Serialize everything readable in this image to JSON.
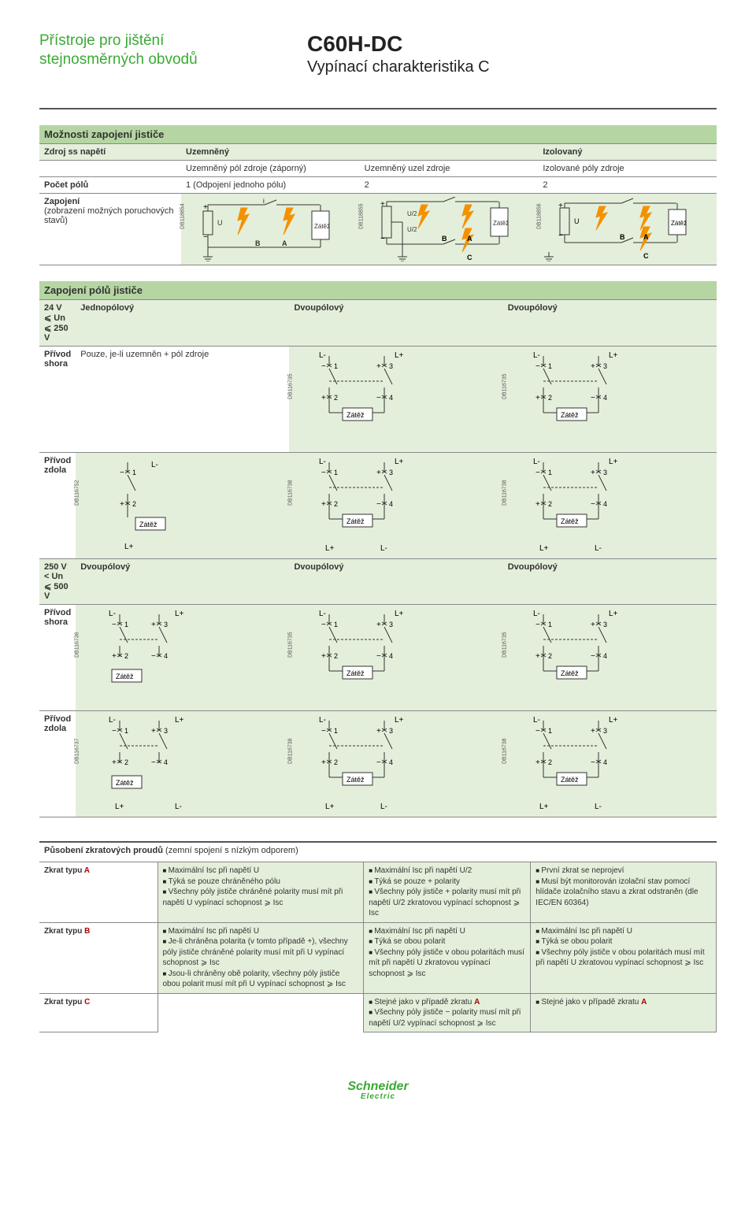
{
  "header": {
    "left_line1": "Přístroje pro jištění",
    "left_line2": "stejnosměrných obvodů",
    "model": "C60H-DC",
    "subtitle": "Vypínací charakteristika C"
  },
  "colors": {
    "accent_green": "#3aaa35",
    "band_green": "#b5d6a3",
    "pale_green": "#e4efdb",
    "bolt_orange": "#f39200",
    "line": "#333333"
  },
  "table1": {
    "title": "Možnosti zapojení jističe",
    "rows": {
      "source": {
        "label": "Zdroj ss napětí",
        "c1": "Uzemně­ný",
        "c2": "",
        "c3": "Izolovaný"
      },
      "source_sub": {
        "c1": "Uzemně­ný pól zdroje (záporný)",
        "c2": "Uzemně­ný uzel zdroje",
        "c3": "Izolované póly zdroje"
      },
      "poles": {
        "label": "Počet pólů",
        "c1": "1 (Odpojení jednoho pólu)",
        "c2": "2",
        "c3": "2"
      },
      "wiring": {
        "label_l1": "Zapojení",
        "label_l2": "(zobrazení možných poruchových stavů)"
      }
    },
    "diagrams": {
      "d1": {
        "db": "DB118854",
        "u_label": "U",
        "load": "Zátěž",
        "a": "A",
        "b": "B",
        "c": "",
        "u2": ""
      },
      "d2": {
        "db": "DB118855",
        "u_label": "U/2",
        "load": "Zátěž",
        "a": "A",
        "b": "B",
        "c": "C",
        "u2": "U/2"
      },
      "d3": {
        "db": "DB118856",
        "u_label": "U",
        "load": "Zátěž",
        "a": "A",
        "b": "B",
        "c": "C",
        "u2": ""
      }
    }
  },
  "table2": {
    "title": "Zapojení pólů jističe",
    "range1": "24 V ⩽ Un ⩽ 250 V",
    "range2": "250 V < Un ⩽ 500 V",
    "h_single": "Jednopólový",
    "h_double": "Dvoupólový",
    "row_top": "Přívod shora",
    "row_bottom": "Přívod zdola",
    "single_note": "Pouze, je-li uzemněn + pól zdroje",
    "load": "Zátěž",
    "lplus": "L+",
    "lminus": "L-",
    "db": {
      "a": "DB116735",
      "b": "DB116735",
      "c": "DB116752",
      "d": "DB116738",
      "e": "DB116738",
      "f": "DB116736",
      "g": "DB116735",
      "h": "DB116735",
      "i": "DB116737",
      "j": "DB116738",
      "k": "DB116738"
    }
  },
  "table3": {
    "title": "Působení zkratových proudů",
    "title_paren": "(zemní spojení s nízkým odporem)",
    "rows": {
      "a": {
        "label": "Zkrat typu ",
        "letter": "A",
        "c1": [
          "Maximální Isc při napětí U",
          "Týká se pouze chráněného pólu",
          "Všechny póly jističe chráněné polarity musí mít při napětí U vypínací schopnost ⩾ Isc"
        ],
        "c2": [
          "Maximální Isc při napětí U/2",
          "Týká se pouze + polarity",
          "Všechny póly jističe + polarity musí mít při napětí U/2 zkratovou vypínací schopnost ⩾ Isc"
        ],
        "c3": [
          "První zkrat se neprojeví",
          "Musí být monitorován izolační stav pomocí hlídače izolačního stavu a zkrat odstraněn (dle IEC/EN 60364)"
        ]
      },
      "b": {
        "label": "Zkrat typu ",
        "letter": "B",
        "c1": [
          "Maximální Isc při napětí U",
          "Je-li chráněna polarita (v tomto případě +), všechny póly jističe chráněné polarity musí mít při U vypínací schopnost ⩾ Isc",
          "Jsou-li chráněny obě polarity, všechny póly jističe obou polarit musí mít při U vypínací schopnost ⩾ Isc"
        ],
        "c2": [
          "Maximální Isc při napětí U",
          "Týká se obou polarit",
          "Všechny póly jističe v obou polaritách musí mít při napětí U zkratovou vypínací schopnost ⩾ Isc"
        ],
        "c3": [
          "Maximální Isc při napětí U",
          "Týká se obou polarit",
          "Všechny póly jističe v obou polaritách musí mít při napětí U zkratovou vypínací schopnost ⩾ Isc"
        ]
      },
      "c": {
        "label": "Zkrat typu ",
        "letter": "C",
        "c1_empty": true,
        "c2": [
          "Stejné jako v případě zkratu |A|",
          "Všechny póly jističe − polarity musí mít při napětí U/2 vypínací schopnost ⩾ Isc"
        ],
        "c3": [
          "Stejné jako v případě zkratu |A|"
        ]
      }
    }
  },
  "footer": {
    "brand": "Schneider",
    "sub": "Electric"
  }
}
